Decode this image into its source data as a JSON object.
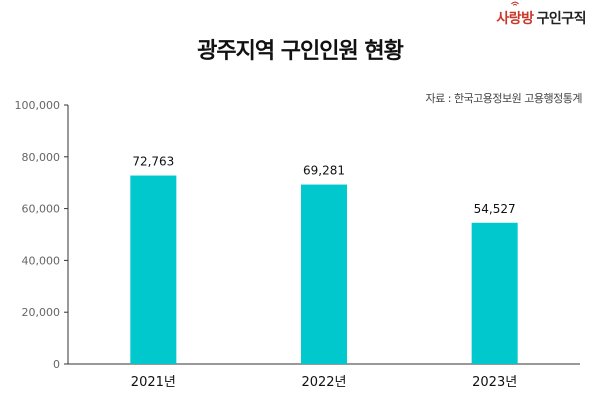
{
  "logo": {
    "brand": "사랑방",
    "text": "구인구직"
  },
  "title": "광주지역 구인인원 현황",
  "source": "자료 : 한국고용정보원 고용행정통계",
  "colors": {
    "bar": "#00c8cc",
    "axis": "#333333",
    "grid": "#d9d9d9",
    "brand": "#c8392b"
  },
  "icons": {
    "logo_mark": "wifi-signal-icon"
  },
  "chart_data": {
    "type": "bar",
    "title": "광주지역 구인인원 현황",
    "xlabel": "",
    "ylabel": "",
    "categories": [
      "2021년",
      "2022년",
      "2023년"
    ],
    "values": [
      72763,
      69281,
      54527
    ],
    "value_labels": [
      "72,763",
      "69,281",
      "54,527"
    ],
    "ylim": [
      0,
      100000
    ],
    "yticks": [
      0,
      20000,
      40000,
      60000,
      80000,
      100000
    ],
    "ytick_labels": [
      "0",
      "20,000",
      "40,000",
      "60,000",
      "80,000",
      "100,000"
    ],
    "grid": false,
    "legend": "none"
  }
}
